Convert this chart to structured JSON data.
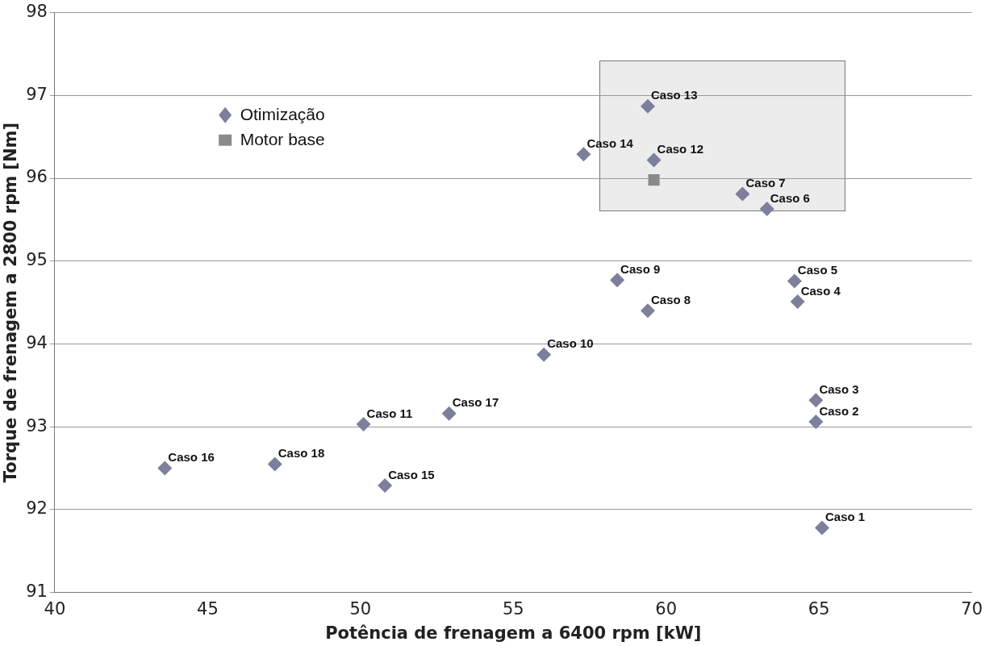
{
  "chart_data": {
    "type": "scatter",
    "xlabel": "Potência de frenagem a 6400 rpm [kW]",
    "ylabel": "Torque de frenagem a 2800 rpm [Nm]",
    "xlim": [
      40,
      70
    ],
    "xticks": [
      40,
      45,
      50,
      55,
      60,
      65,
      70
    ],
    "ylim": [
      91,
      98
    ],
    "yticks": [
      91,
      92,
      93,
      94,
      95,
      96,
      97,
      98
    ],
    "grid": "y",
    "legend": "top left",
    "series": [
      {
        "name": "Otimização",
        "color": "#7d7f9c",
        "marker": "diamond",
        "x": [
          65.1,
          64.9,
          64.9,
          64.3,
          64.2,
          63.3,
          62.5,
          59.4,
          58.4,
          56.0,
          50.1,
          59.6,
          59.4,
          57.3,
          50.8,
          43.6,
          52.9,
          47.2
        ],
        "values": [
          91.78,
          93.06,
          93.32,
          94.51,
          94.76,
          95.63,
          95.81,
          94.4,
          94.77,
          93.87,
          93.03,
          96.22,
          96.87,
          96.29,
          92.29,
          92.5,
          93.16,
          92.55
        ],
        "value_labels": [
          "Caso 1",
          "Caso 2",
          "Caso 3",
          "Caso 4",
          "Caso 5",
          "Caso 6",
          "Caso 7",
          "Caso 8",
          "Caso 9",
          "Caso 10",
          "Caso 11",
          "Caso 12",
          "Caso 13",
          "Caso 14",
          "Caso 15",
          "Caso 16",
          "Caso 17",
          "Caso 18"
        ]
      },
      {
        "name": "Motor base",
        "color": "#8a8a8a",
        "marker": "square",
        "x": [
          59.6
        ],
        "values": [
          95.98
        ]
      }
    ]
  }
}
